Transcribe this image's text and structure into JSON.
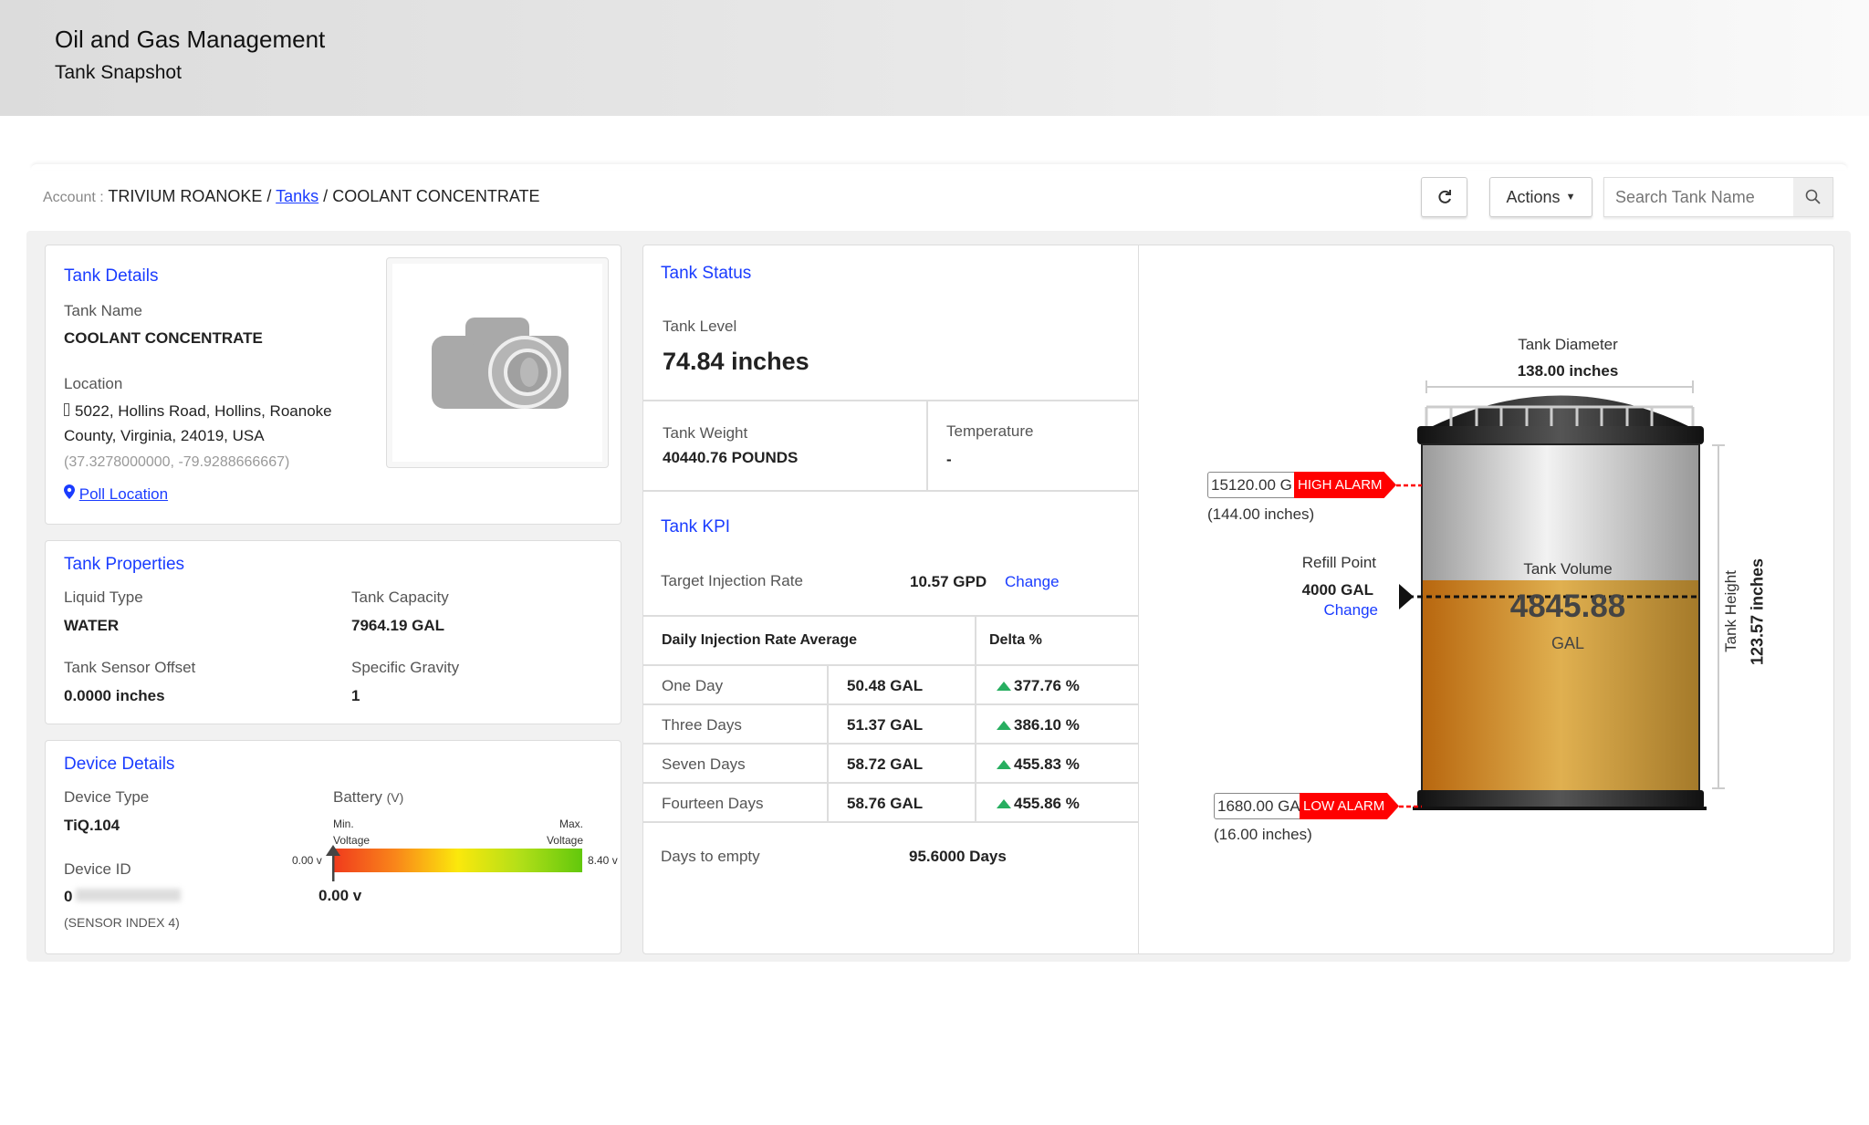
{
  "header": {
    "title": "Oil and Gas Management",
    "subtitle": "Tank Snapshot"
  },
  "breadcrumb": {
    "account_label": "Account :",
    "account": "TRIVIUM ROANOKE",
    "sep": "/",
    "tanks": "Tanks",
    "current": "COOLANT CONCENTRATE"
  },
  "toolbar": {
    "refresh_icon": "refresh-icon",
    "actions": "Actions",
    "search_placeholder": "Search Tank Name",
    "search_icon": "search-icon"
  },
  "tank_details": {
    "title": "Tank Details",
    "name_label": "Tank Name",
    "name": "COOLANT CONCENTRATE",
    "location_label": "Location",
    "address_line1": "5022, Hollins Road, Hollins, Roanoke",
    "address_line2": "County, Virginia, 24019, USA",
    "coords": "(37.3278000000, -79.9288666667)",
    "poll": "Poll Location",
    "image_icon": "camera-icon"
  },
  "tank_properties": {
    "title": "Tank Properties",
    "liquid_type_label": "Liquid Type",
    "liquid_type": "WATER",
    "capacity_label": "Tank Capacity",
    "capacity": "7964.19 GAL",
    "offset_label": "Tank Sensor Offset",
    "offset": "0.0000 inches",
    "gravity_label": "Specific Gravity",
    "gravity": "1"
  },
  "device_details": {
    "title": "Device Details",
    "type_label": "Device Type",
    "type": "TiQ.104",
    "id_label": "Device ID",
    "id_prefix": "0",
    "sensor_index": "(SENSOR INDEX 4)",
    "battery_label": "Battery",
    "battery_unit": "(V)",
    "min_label_1": "Min.",
    "min_label_2": "Voltage",
    "max_label_1": "Max.",
    "max_label_2": "Voltage",
    "min_value": "0.00 v",
    "max_value": "8.40 v",
    "current_value": "0.00 v",
    "battery_fraction": 0
  },
  "tank_status": {
    "title": "Tank Status",
    "level_label": "Tank Level",
    "level": "74.84 inches",
    "weight_label": "Tank Weight",
    "weight": "40440.76 POUNDS",
    "temp_label": "Temperature",
    "temp": "-"
  },
  "tank_kpi": {
    "title": "Tank KPI",
    "target_label": "Target Injection Rate",
    "target": "10.57 GPD",
    "change": "Change",
    "table": {
      "header": "Daily Injection Rate Average",
      "delta_header": "Delta %",
      "rows": [
        {
          "period": "One Day",
          "value": "50.48 GAL",
          "delta": "377.76 %"
        },
        {
          "period": "Three Days",
          "value": "51.37 GAL",
          "delta": "386.10 %"
        },
        {
          "period": "Seven Days",
          "value": "58.72 GAL",
          "delta": "455.83 %"
        },
        {
          "period": "Fourteen Days",
          "value": "58.76 GAL",
          "delta": "455.86 %"
        }
      ]
    },
    "days_label": "Days to empty",
    "days": "95.6000 Days"
  },
  "tank_visual": {
    "diameter_label": "Tank Diameter",
    "diameter": "138.00 inches",
    "height_label": "Tank Height",
    "height": "123.57 inches",
    "volume_label": "Tank Volume",
    "volume": "4845.88",
    "volume_unit": "GAL",
    "fill_fraction": 0.608,
    "high_alarm": {
      "value": "15120.00 G",
      "label": "HIGH ALARM",
      "inches": "(144.00 inches)"
    },
    "low_alarm": {
      "value": "1680.00 GA",
      "label": "LOW ALARM",
      "inches": "(16.00 inches)"
    },
    "refill": {
      "label": "Refill Point",
      "value": "4000 GAL",
      "change": "Change"
    },
    "colors": {
      "alarm": "#ff0000",
      "liquid": "#d9a640",
      "link": "#1a3cff",
      "delta_up": "#27ae60"
    }
  }
}
